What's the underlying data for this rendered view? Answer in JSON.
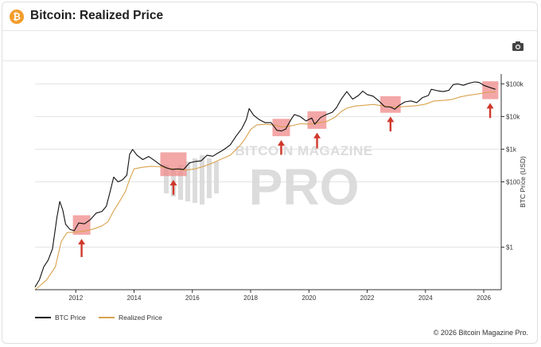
{
  "header": {
    "icon_glyph": "₿",
    "title": "Bitcoin: Realized Price"
  },
  "toolbar": {
    "camera_icon": "camera-icon"
  },
  "watermark": {
    "line1": "BITCOIN MAGAZINE",
    "line2": "PRO"
  },
  "colors": {
    "btc_price": "#111111",
    "realized_price": "#d9a24e",
    "highlight_box": "#ef8a8a",
    "arrow": "#d0392b",
    "watermark": "#d9d9d9",
    "bitcoin_orange": "#f39c2b"
  },
  "chart_data": {
    "type": "line",
    "title": "Bitcoin: Realized Price",
    "ylabel": "BTC Price (USD)",
    "yscale": "log",
    "ylim": [
      0.05,
      200000
    ],
    "xlim": [
      2010.6,
      2026.6
    ],
    "y_ticks": [
      {
        "value": 1,
        "label": "$1"
      },
      {
        "value": 100,
        "label": "$100"
      },
      {
        "value": 1000,
        "label": "$1k"
      },
      {
        "value": 10000,
        "label": "$10k"
      },
      {
        "value": 100000,
        "label": "$100k"
      }
    ],
    "x_ticks": [
      {
        "value": 2012,
        "label": "2012"
      },
      {
        "value": 2014,
        "label": "2014"
      },
      {
        "value": 2016,
        "label": "2016"
      },
      {
        "value": 2018,
        "label": "2018"
      },
      {
        "value": 2020,
        "label": "2020"
      },
      {
        "value": 2022,
        "label": "2022"
      },
      {
        "value": 2024,
        "label": "2024"
      },
      {
        "value": 2026,
        "label": "2026"
      }
    ],
    "grid": true,
    "legend_position": "bottom-left",
    "series": [
      {
        "name": "BTC Price",
        "x": [
          2010.6,
          2010.75,
          2010.9,
          2011.05,
          2011.2,
          2011.35,
          2011.45,
          2011.55,
          2011.65,
          2011.8,
          2011.95,
          2012.1,
          2012.3,
          2012.5,
          2012.7,
          2012.9,
          2013.05,
          2013.2,
          2013.3,
          2013.45,
          2013.6,
          2013.75,
          2013.85,
          2013.95,
          2014.1,
          2014.3,
          2014.5,
          2014.7,
          2014.9,
          2015.1,
          2015.3,
          2015.5,
          2015.7,
          2015.9,
          2016.1,
          2016.3,
          2016.5,
          2016.7,
          2016.9,
          2017.1,
          2017.3,
          2017.5,
          2017.7,
          2017.85,
          2017.95,
          2018.1,
          2018.3,
          2018.5,
          2018.7,
          2018.9,
          2019.05,
          2019.2,
          2019.4,
          2019.5,
          2019.7,
          2019.9,
          2020.1,
          2020.2,
          2020.4,
          2020.6,
          2020.8,
          2020.95,
          2021.1,
          2021.3,
          2021.5,
          2021.7,
          2021.85,
          2022.0,
          2022.2,
          2022.4,
          2022.6,
          2022.8,
          2022.95,
          2023.1,
          2023.3,
          2023.5,
          2023.7,
          2023.9,
          2024.1,
          2024.2,
          2024.4,
          2024.6,
          2024.8,
          2024.95,
          2025.1,
          2025.3,
          2025.5,
          2025.7,
          2025.85,
          2026.0,
          2026.2,
          2026.4
        ],
        "values": [
          0.06,
          0.1,
          0.25,
          0.4,
          0.9,
          8,
          25,
          14,
          5,
          3.5,
          3.2,
          5.5,
          5.2,
          7,
          11,
          12.5,
          18,
          60,
          140,
          100,
          115,
          160,
          700,
          980,
          650,
          480,
          600,
          450,
          330,
          270,
          240,
          250,
          240,
          380,
          420,
          440,
          650,
          610,
          780,
          1000,
          1350,
          2500,
          4300,
          8000,
          17500,
          11000,
          8000,
          6500,
          6500,
          3800,
          3600,
          4100,
          8500,
          11500,
          10000,
          7300,
          9000,
          5800,
          9300,
          11600,
          13500,
          19000,
          33000,
          58000,
          34000,
          44000,
          60000,
          47000,
          42000,
          30000,
          20000,
          19500,
          16800,
          22000,
          28000,
          30000,
          26500,
          38000,
          44000,
          68000,
          62000,
          58000,
          63000,
          95000,
          100000,
          90000,
          105000,
          115000,
          110000,
          90000,
          78000,
          68000
        ]
      },
      {
        "name": "Realized Price",
        "x": [
          2010.6,
          2010.8,
          2011.0,
          2011.3,
          2011.5,
          2011.7,
          2012.0,
          2012.3,
          2012.6,
          2012.9,
          2013.1,
          2013.3,
          2013.5,
          2013.7,
          2013.85,
          2014.0,
          2014.3,
          2014.6,
          2014.9,
          2015.2,
          2015.5,
          2015.8,
          2016.1,
          2016.4,
          2016.7,
          2017.0,
          2017.3,
          2017.6,
          2017.8,
          2018.0,
          2018.2,
          2018.5,
          2018.8,
          2019.1,
          2019.4,
          2019.7,
          2020.0,
          2020.3,
          2020.6,
          2020.9,
          2021.1,
          2021.3,
          2021.6,
          2021.9,
          2022.2,
          2022.5,
          2022.8,
          2023.1,
          2023.4,
          2023.7,
          2024.0,
          2024.3,
          2024.6,
          2024.9,
          2025.2,
          2025.5,
          2025.8,
          2026.1,
          2026.4
        ],
        "values": [
          0.05,
          0.07,
          0.1,
          0.25,
          1.5,
          2.8,
          2.9,
          3.1,
          3.6,
          4.5,
          6,
          13,
          25,
          50,
          120,
          250,
          280,
          300,
          290,
          260,
          240,
          230,
          250,
          300,
          380,
          500,
          650,
          1200,
          2000,
          4000,
          5500,
          5800,
          5500,
          4800,
          5200,
          6000,
          5900,
          6300,
          7000,
          9500,
          14000,
          18000,
          21000,
          22000,
          23500,
          21500,
          20000,
          19600,
          20500,
          21500,
          24000,
          30000,
          31000,
          33000,
          40000,
          45000,
          49000,
          55000,
          57000
        ]
      }
    ],
    "highlights": [
      {
        "x_start": 2011.9,
        "x_end": 2012.5,
        "y_low": 2.4,
        "y_high": 9.5
      },
      {
        "x_start": 2014.9,
        "x_end": 2015.8,
        "y_low": 150,
        "y_high": 800
      },
      {
        "x_start": 2018.75,
        "x_end": 2019.35,
        "y_low": 2500,
        "y_high": 8500
      },
      {
        "x_start": 2019.95,
        "x_end": 2020.6,
        "y_low": 4200,
        "y_high": 14500
      },
      {
        "x_start": 2022.45,
        "x_end": 2023.15,
        "y_low": 13000,
        "y_high": 42000
      },
      {
        "x_start": 2025.95,
        "x_end": 2026.5,
        "y_low": 34000,
        "y_high": 120000
      }
    ],
    "arrows": [
      {
        "x": 2012.2,
        "y_tip": 1.8,
        "y_tail": 0.5
      },
      {
        "x": 2015.35,
        "y_tip": 115,
        "y_tail": 40
      },
      {
        "x": 2019.05,
        "y_tip": 1900,
        "y_tail": 680
      },
      {
        "x": 2020.28,
        "y_tip": 3200,
        "y_tail": 1050
      },
      {
        "x": 2022.8,
        "y_tip": 10000,
        "y_tail": 3500
      },
      {
        "x": 2026.22,
        "y_tip": 26000,
        "y_tail": 9000
      }
    ]
  },
  "legend": {
    "btc_label": "BTC Price",
    "realized_label": "Realized Price"
  },
  "footer": {
    "copyright": "© 2026 Bitcoin Magazine Pro."
  }
}
